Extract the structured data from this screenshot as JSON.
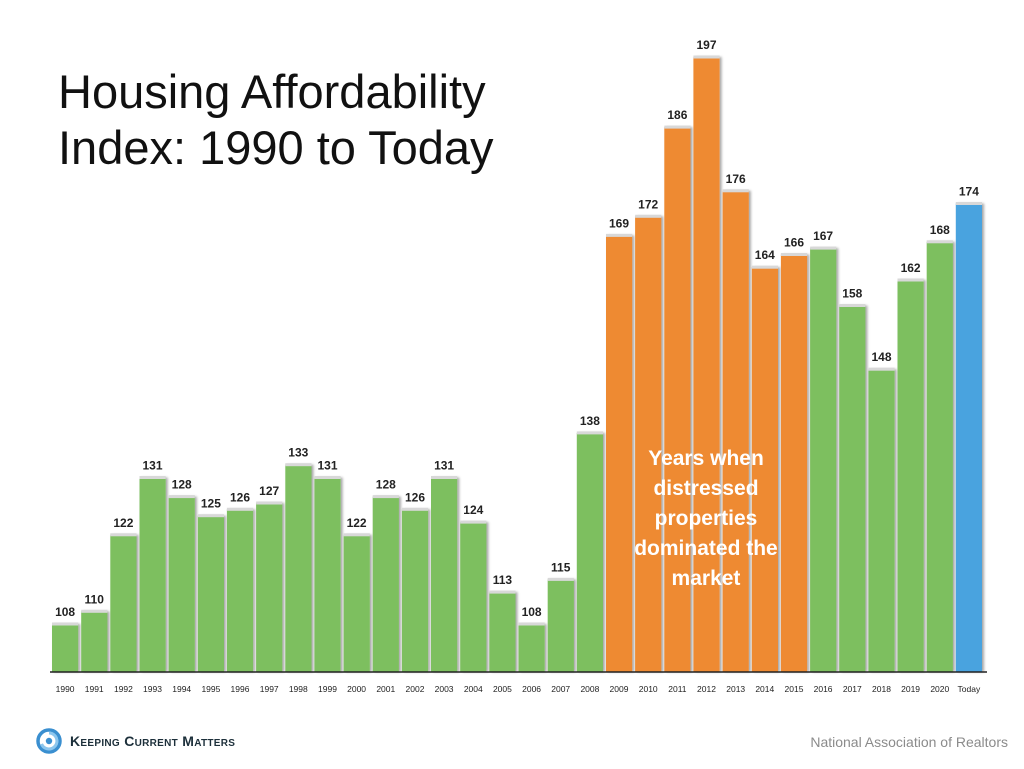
{
  "title": "Housing Affordability Index: 1990 to Today",
  "annotation": "Years when\ndistressed\nproperties\ndominated the\nmarket",
  "footer": {
    "logo_text": "Keeping Current Matters",
    "logo_icon": "swirl-logo-icon",
    "source": "National Association of Realtors"
  },
  "colors": {
    "normal": "#7dbf5f",
    "distressed": "#ee8a32",
    "today": "#4aa3df"
  },
  "chart_data": {
    "type": "bar",
    "title": "Housing Affordability Index: 1990 to Today",
    "xlabel": "",
    "ylabel": "",
    "grid": false,
    "ylim": [
      85,
      200
    ],
    "categories": [
      "1990",
      "1991",
      "1992",
      "1993",
      "1994",
      "1995",
      "1996",
      "1997",
      "1998",
      "1999",
      "2000",
      "2001",
      "2002",
      "2003",
      "2004",
      "2005",
      "2006",
      "2007",
      "2008",
      "2009",
      "2010",
      "2011",
      "2012",
      "2013",
      "2014",
      "2015",
      "2016",
      "2017",
      "2018",
      "2019",
      "2020",
      "Today"
    ],
    "values": [
      108,
      110,
      122,
      131,
      128,
      125,
      126,
      127,
      133,
      131,
      122,
      128,
      126,
      131,
      124,
      113,
      108,
      115,
      138,
      169,
      172,
      186,
      197,
      176,
      164,
      166,
      167,
      158,
      148,
      162,
      168,
      174
    ],
    "bar_groups": [
      "normal",
      "normal",
      "normal",
      "normal",
      "normal",
      "normal",
      "normal",
      "normal",
      "normal",
      "normal",
      "normal",
      "normal",
      "normal",
      "normal",
      "normal",
      "normal",
      "normal",
      "normal",
      "normal",
      "distressed",
      "distressed",
      "distressed",
      "distressed",
      "distressed",
      "distressed",
      "distressed",
      "normal",
      "normal",
      "normal",
      "normal",
      "normal",
      "today"
    ]
  }
}
